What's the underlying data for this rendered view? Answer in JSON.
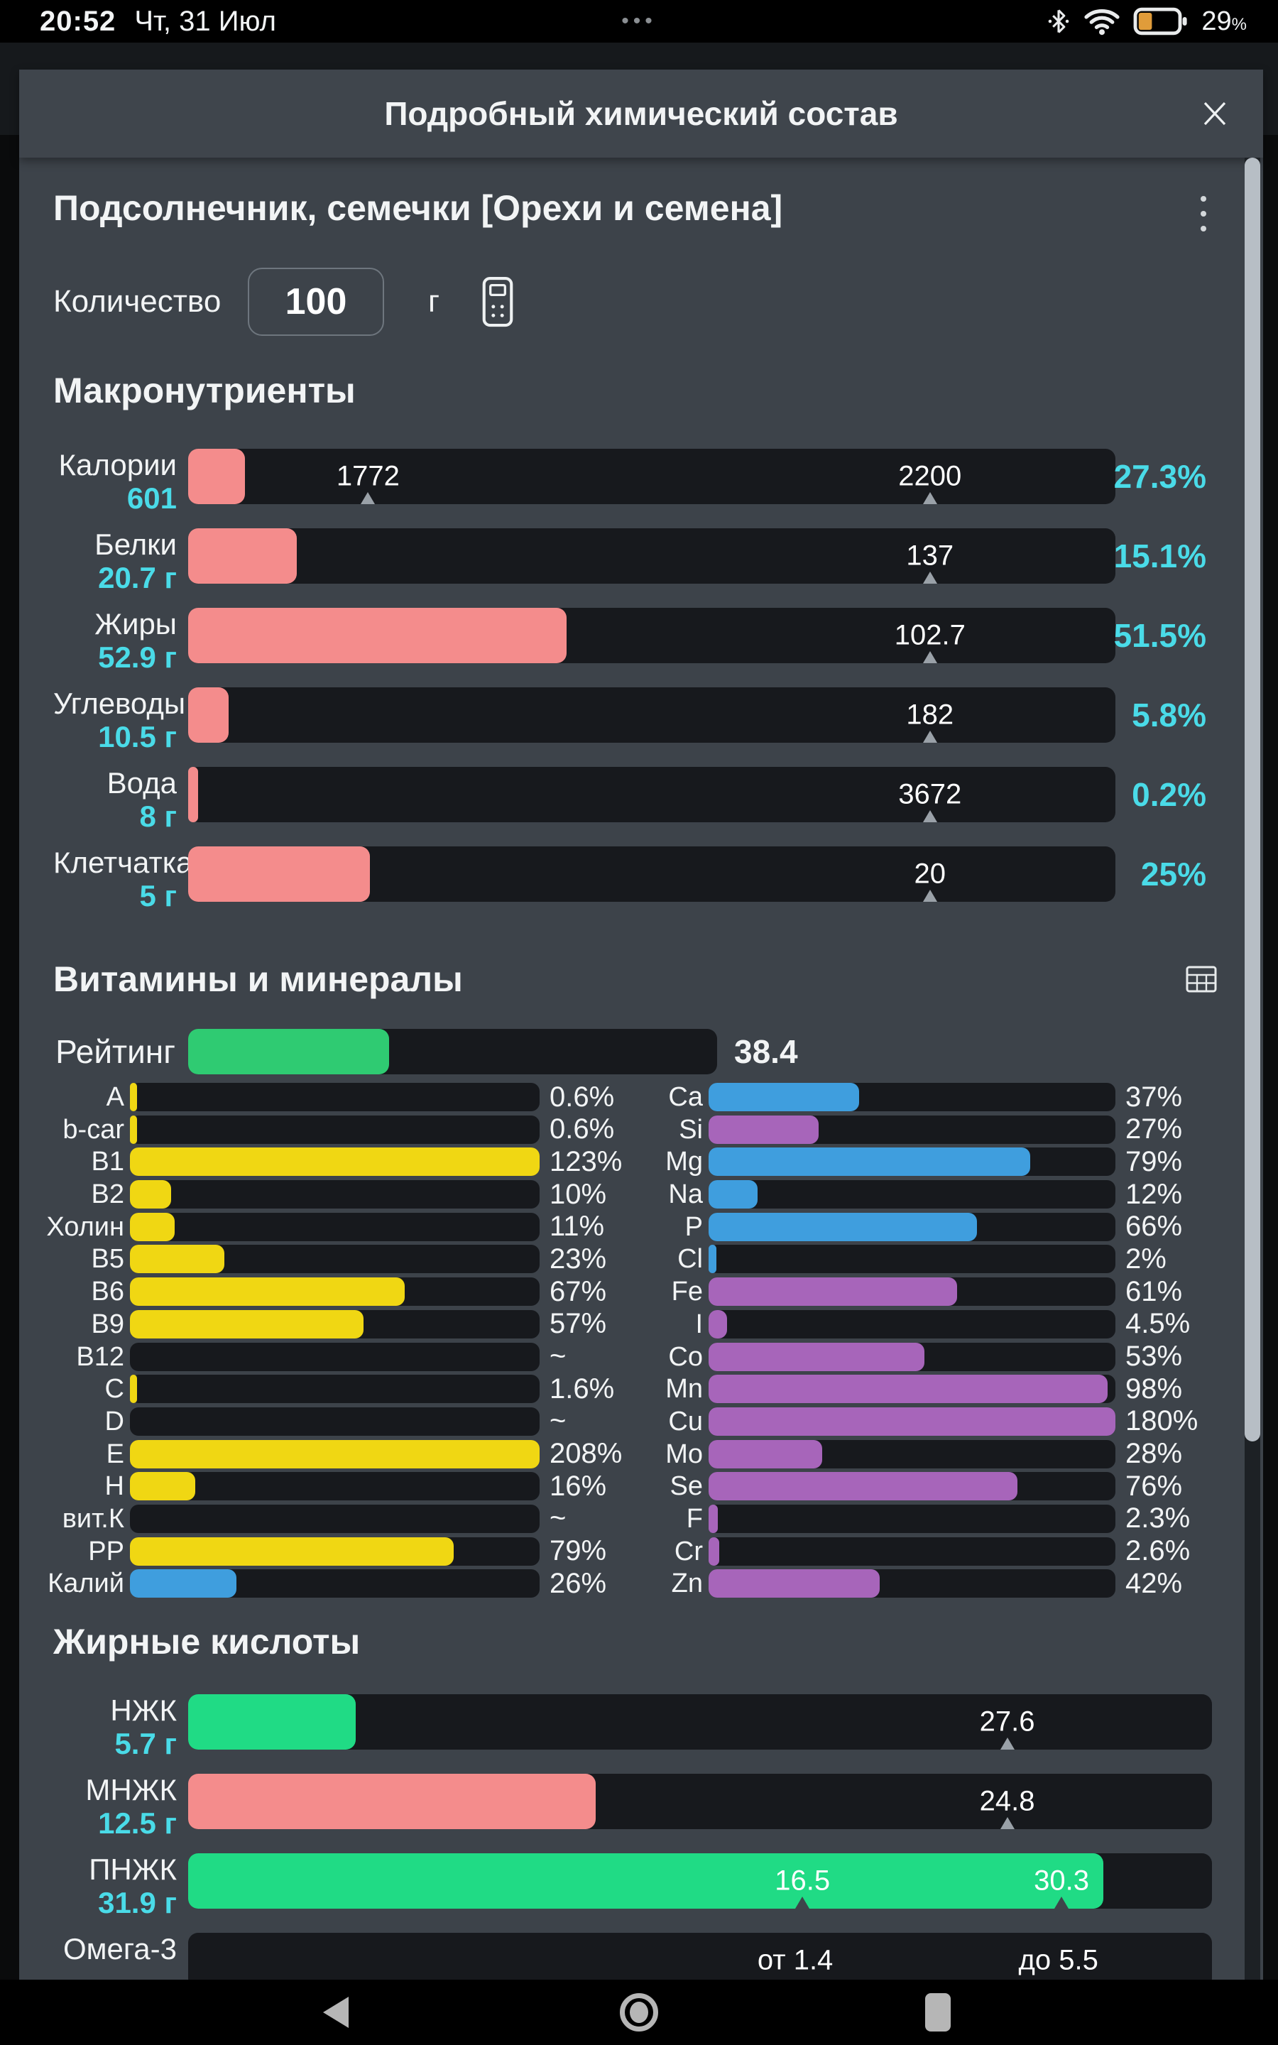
{
  "status_bar": {
    "time": "20:52",
    "date": "Чт, 31 Июл",
    "menu_dots": "•••",
    "battery_level": "29",
    "percent_sign": "%"
  },
  "modal": {
    "title": "Подробный химический состав"
  },
  "food": {
    "title": "Подсолнечник, семечки [Орехи и семена]"
  },
  "quantity": {
    "label": "Количество",
    "value": "100",
    "unit": "г"
  },
  "sections": {
    "macros": "Макронутриенты",
    "vitamins": "Витамины и минералы",
    "fatty_acids": "Жирные кислоты"
  },
  "rating": {
    "label": "Рейтинг",
    "value": "38.4",
    "fill_pct": 38,
    "color": "#2fcb72"
  },
  "macro_rows": [
    {
      "label": "Калории",
      "sub": "601",
      "fill_pct": 6.1,
      "color": "#f48c8c",
      "pct": "27.3%",
      "markers": [
        {
          "text": "1772",
          "pos": 19.4
        },
        {
          "text": "2200",
          "pos": 80
        }
      ]
    },
    {
      "label": "Белки",
      "sub": "20.7 г",
      "fill_pct": 11.7,
      "color": "#f48c8c",
      "pct": "15.1%",
      "markers": [
        {
          "text": "137",
          "pos": 80
        }
      ]
    },
    {
      "label": "Жиры",
      "sub": "52.9 г",
      "fill_pct": 40.8,
      "color": "#f48c8c",
      "pct": "51.5%",
      "markers": [
        {
          "text": "102.7",
          "pos": 80
        }
      ]
    },
    {
      "label": "Углеводы",
      "sub": "10.5 г",
      "fill_pct": 4.4,
      "color": "#f48c8c",
      "pct": "5.8%",
      "markers": [
        {
          "text": "182",
          "pos": 80
        }
      ]
    },
    {
      "label": "Вода",
      "sub": "8 г",
      "fill_pct": 1.1,
      "color": "#f48c8c",
      "pct": "0.2%",
      "markers": [
        {
          "text": "3672",
          "pos": 80
        }
      ]
    },
    {
      "label": "Клетчатка",
      "sub": "5 г",
      "fill_pct": 19.6,
      "color": "#f48c8c",
      "pct": "25%",
      "markers": [
        {
          "text": "20",
          "pos": 80
        }
      ]
    }
  ],
  "vitamins": {
    "left": [
      {
        "label": "A",
        "pct": "0.6%",
        "fill": 0.6,
        "color": "#f0d713"
      },
      {
        "label": "b-car",
        "pct": "0.6%",
        "fill": 0.6,
        "color": "#f0d713"
      },
      {
        "label": "B1",
        "pct": "123%",
        "fill": 100,
        "color": "#f0d713"
      },
      {
        "label": "B2",
        "pct": "10%",
        "fill": 10,
        "color": "#f0d713"
      },
      {
        "label": "Холин",
        "pct": "11%",
        "fill": 11,
        "color": "#f0d713"
      },
      {
        "label": "B5",
        "pct": "23%",
        "fill": 23,
        "color": "#f0d713"
      },
      {
        "label": "B6",
        "pct": "67%",
        "fill": 67,
        "color": "#f0d713"
      },
      {
        "label": "B9",
        "pct": "57%",
        "fill": 57,
        "color": "#f0d713"
      },
      {
        "label": "B12",
        "pct": "~",
        "fill": 0,
        "color": "#f0d713"
      },
      {
        "label": "C",
        "pct": "1.6%",
        "fill": 1.6,
        "color": "#f0d713"
      },
      {
        "label": "D",
        "pct": "~",
        "fill": 0,
        "color": "#f0d713"
      },
      {
        "label": "E",
        "pct": "208%",
        "fill": 100,
        "color": "#f0d713"
      },
      {
        "label": "H",
        "pct": "16%",
        "fill": 16,
        "color": "#f0d713"
      },
      {
        "label": "вит.К",
        "pct": "~",
        "fill": 0,
        "color": "#f0d713"
      },
      {
        "label": "PP",
        "pct": "79%",
        "fill": 79,
        "color": "#f0d713"
      },
      {
        "label": "Калий",
        "pct": "26%",
        "fill": 26,
        "color": "#3f9ede"
      }
    ],
    "right": [
      {
        "label": "Ca",
        "pct": "37%",
        "fill": 37,
        "color": "#3f9ede"
      },
      {
        "label": "Si",
        "pct": "27%",
        "fill": 27,
        "color": "#a765ba"
      },
      {
        "label": "Mg",
        "pct": "79%",
        "fill": 79,
        "color": "#3f9ede"
      },
      {
        "label": "Na",
        "pct": "12%",
        "fill": 12,
        "color": "#3f9ede"
      },
      {
        "label": "P",
        "pct": "66%",
        "fill": 66,
        "color": "#3f9ede"
      },
      {
        "label": "Cl",
        "pct": "2%",
        "fill": 2,
        "color": "#3f9ede"
      },
      {
        "label": "Fe",
        "pct": "61%",
        "fill": 61,
        "color": "#a765ba"
      },
      {
        "label": "I",
        "pct": "4.5%",
        "fill": 4.5,
        "color": "#a765ba"
      },
      {
        "label": "Co",
        "pct": "53%",
        "fill": 53,
        "color": "#a765ba"
      },
      {
        "label": "Mn",
        "pct": "98%",
        "fill": 98,
        "color": "#a765ba"
      },
      {
        "label": "Cu",
        "pct": "180%",
        "fill": 100,
        "color": "#a765ba"
      },
      {
        "label": "Mo",
        "pct": "28%",
        "fill": 28,
        "color": "#a765ba"
      },
      {
        "label": "Se",
        "pct": "76%",
        "fill": 76,
        "color": "#a765ba"
      },
      {
        "label": "F",
        "pct": "2.3%",
        "fill": 2.3,
        "color": "#a765ba"
      },
      {
        "label": "Cr",
        "pct": "2.6%",
        "fill": 2.6,
        "color": "#a765ba"
      },
      {
        "label": "Zn",
        "pct": "42%",
        "fill": 42,
        "color": "#a765ba"
      }
    ]
  },
  "fatty_rows": [
    {
      "label": "НЖК",
      "sub": "5.7 г",
      "fill_pct": 16.4,
      "color": "#20db85",
      "markers": [
        {
          "text": "27.6",
          "pos": 80
        }
      ]
    },
    {
      "label": "МНЖК",
      "sub": "12.5 г",
      "fill_pct": 39.8,
      "color": "#f48c8c",
      "markers": [
        {
          "text": "24.8",
          "pos": 80
        }
      ]
    },
    {
      "label": "ПНЖК",
      "sub": "31.9 г",
      "fill_pct": 89.4,
      "color": "#20db85",
      "tri_color": "#3e444a",
      "markers": [
        {
          "text": "16.5",
          "pos": 60
        },
        {
          "text": "30.3",
          "pos": 85.3
        }
      ]
    },
    {
      "label": "Омега-3",
      "sub": "",
      "fill_pct": 0,
      "color": null,
      "show_tri": false,
      "markers": [
        {
          "text": "от 1.4",
          "pos": 59.3
        },
        {
          "text": "до 5.5",
          "pos": 85
        }
      ]
    }
  ],
  "colors": {
    "accent_cyan": "#4adbe8",
    "salmon": "#f48c8c",
    "yellow": "#f0d713",
    "blue": "#3f9ede",
    "purple": "#a765ba",
    "green": "#20db85",
    "rating_green": "#2fcb72",
    "battery_orange": "#e09c3a"
  }
}
